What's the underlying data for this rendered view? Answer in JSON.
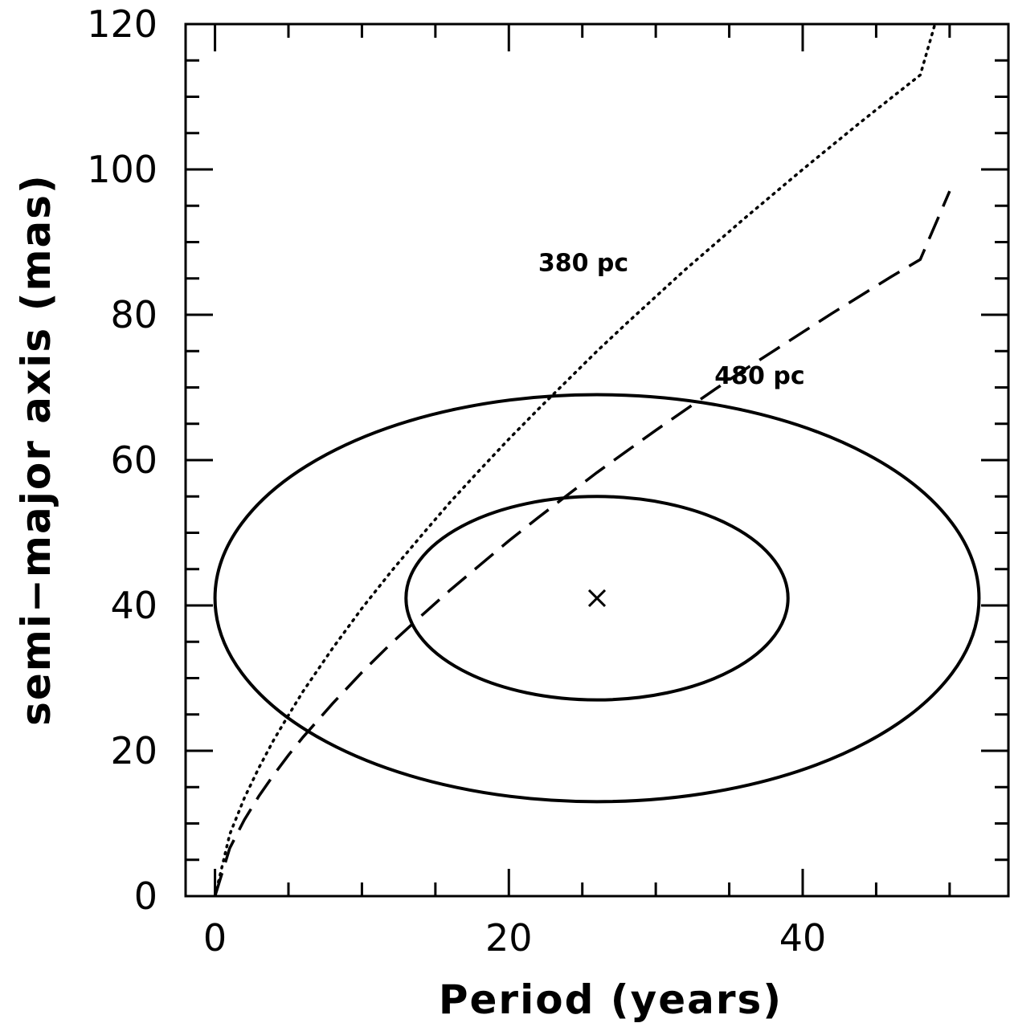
{
  "chart_data": {
    "type": "line",
    "xlabel": "Period (years)",
    "ylabel": "semi−major axis (mas)",
    "xlim": [
      -2,
      54
    ],
    "ylim": [
      0,
      120
    ],
    "x_ticks": [
      0,
      20,
      40
    ],
    "x_tick_labels": [
      "0",
      "20",
      "40"
    ],
    "x_minor_step": 5,
    "y_ticks": [
      0,
      20,
      40,
      60,
      80,
      100,
      120
    ],
    "y_tick_labels": [
      "0",
      "20",
      "40",
      "60",
      "80",
      "100",
      "120"
    ],
    "y_minor_step": 5,
    "grid": false,
    "series": [
      {
        "name": "380 pc",
        "style": "dotted",
        "x": [
          0,
          1,
          2,
          3,
          4,
          5,
          6,
          8,
          10,
          12,
          14,
          16,
          18,
          20,
          22,
          24,
          26,
          28,
          30,
          32,
          34,
          36,
          38,
          40,
          42,
          44,
          46,
          48,
          49
        ],
        "y": [
          0,
          8.5,
          13.5,
          17.7,
          21.5,
          24.9,
          28.2,
          34.1,
          39.6,
          44.7,
          49.5,
          54.2,
          58.6,
          62.9,
          67.0,
          71.0,
          75.0,
          78.8,
          82.5,
          86.2,
          89.7,
          93.2,
          96.6,
          100.0,
          103.3,
          106.6,
          109.8,
          113.0,
          120
        ]
      },
      {
        "name": "480 pc",
        "style": "dashed",
        "x": [
          0,
          1,
          2,
          3,
          4,
          5,
          6,
          8,
          10,
          12,
          14,
          16,
          18,
          20,
          22,
          24,
          26,
          28,
          30,
          32,
          34,
          36,
          38,
          40,
          42,
          44,
          46,
          48,
          50
        ],
        "y": [
          0,
          6.6,
          10.5,
          13.8,
          16.7,
          19.4,
          21.9,
          26.5,
          30.8,
          34.8,
          38.5,
          42.1,
          45.5,
          48.9,
          52.1,
          55.2,
          58.3,
          61.2,
          64.1,
          66.9,
          69.7,
          72.4,
          75.0,
          77.6,
          80.2,
          82.7,
          85.2,
          87.6,
          97
        ]
      }
    ],
    "point": {
      "x": 26,
      "y": 41,
      "marker": "x"
    },
    "ellipses": [
      {
        "cx": 26,
        "cy": 41,
        "rx": 13,
        "ry": 14
      },
      {
        "cx": 26,
        "cy": 41,
        "rx": 26,
        "ry": 28
      }
    ],
    "annotations": [
      {
        "text": "380 pc",
        "x": 22,
        "y": 86
      },
      {
        "text": "480 pc",
        "x": 34,
        "y": 70.5
      }
    ]
  }
}
